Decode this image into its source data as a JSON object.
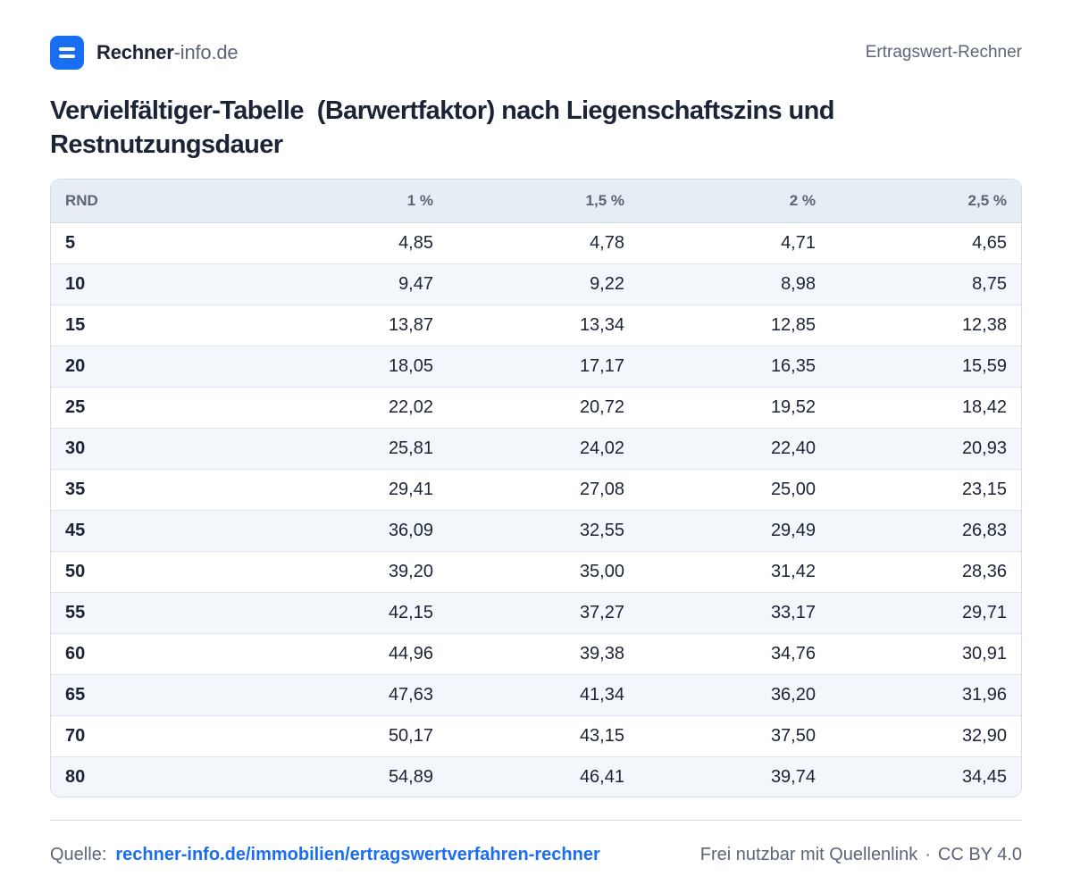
{
  "header": {
    "brand_strong": "Rechner",
    "brand_light": "-info.de",
    "right_label": "Ertragswert-Rechner"
  },
  "title": "Vervielfältiger-Tabelle  (Barwertfaktor) nach Liegenschaftszins und Restnutzungsdauer",
  "table": {
    "headers": [
      "RND",
      "1 %",
      "1,5 %",
      "2 %",
      "2,5 %"
    ],
    "rows": [
      [
        "5",
        "4,85",
        "4,78",
        "4,71",
        "4,65"
      ],
      [
        "10",
        "9,47",
        "9,22",
        "8,98",
        "8,75"
      ],
      [
        "15",
        "13,87",
        "13,34",
        "12,85",
        "12,38"
      ],
      [
        "20",
        "18,05",
        "17,17",
        "16,35",
        "15,59"
      ],
      [
        "25",
        "22,02",
        "20,72",
        "19,52",
        "18,42"
      ],
      [
        "30",
        "25,81",
        "24,02",
        "22,40",
        "20,93"
      ],
      [
        "35",
        "29,41",
        "27,08",
        "25,00",
        "23,15"
      ],
      [
        "45",
        "36,09",
        "32,55",
        "29,49",
        "26,83"
      ],
      [
        "50",
        "39,20",
        "35,00",
        "31,42",
        "28,36"
      ],
      [
        "55",
        "42,15",
        "37,27",
        "33,17",
        "29,71"
      ],
      [
        "60",
        "44,96",
        "39,38",
        "34,76",
        "30,91"
      ],
      [
        "65",
        "47,63",
        "41,34",
        "36,20",
        "31,96"
      ],
      [
        "70",
        "50,17",
        "43,15",
        "37,50",
        "32,90"
      ],
      [
        "80",
        "54,89",
        "46,41",
        "39,74",
        "34,45"
      ]
    ]
  },
  "footer": {
    "source_label": "Quelle:",
    "source_link": "rechner-info.de/immobilien/ertragswertverfahren-rechner",
    "license_text": "Frei nutzbar mit Quellenlink",
    "separator": "·",
    "license": "CC BY 4.0"
  },
  "colors": {
    "accent": "#1a6ef2",
    "text": "#1b2436",
    "muted": "#5b6577",
    "header_bg": "#e6edf5",
    "zebra_bg": "#f3f6fa",
    "border": "#d3dbe6"
  },
  "icons": {
    "logo": "equals-logo-icon"
  }
}
